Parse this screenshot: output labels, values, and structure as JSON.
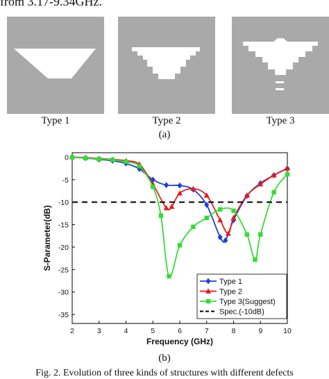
{
  "top_text": "from 3.17-9.34GHz.",
  "structures": [
    {
      "label": "Type 1"
    },
    {
      "label": "Type 2"
    },
    {
      "label": "Type 3"
    }
  ],
  "subfig_a": "(a)",
  "subfig_b": "(b)",
  "caption": "Fig. 2. Evolution of three kinds of structures with different defects",
  "colors": {
    "panel": "#a9a9a9",
    "slot": "#ffffff"
  },
  "chart_data": {
    "type": "line",
    "xlabel": "Frequency (GHz)",
    "ylabel": "S-Parameter(dB)",
    "xlim": [
      2,
      10
    ],
    "ylim": [
      -37,
      1
    ],
    "xticks": [
      2,
      3,
      4,
      5,
      6,
      7,
      8,
      9,
      10
    ],
    "yticks": [
      0,
      -5,
      -10,
      -15,
      -20,
      -25,
      -30,
      -35
    ],
    "legend_position": "bottom-right",
    "series": [
      {
        "name": "Type 1",
        "color": "#1f3fd6",
        "marker": "diamond",
        "x": [
          2,
          2.5,
          3,
          3.5,
          4,
          4.5,
          5,
          5.5,
          6,
          6.5,
          7,
          7.5,
          7.7,
          8,
          8.5,
          9,
          9.5,
          10
        ],
        "y": [
          0,
          -0.2,
          -0.5,
          -0.8,
          -1.4,
          -2.6,
          -5.0,
          -6.2,
          -6.3,
          -7.2,
          -10.6,
          -17.8,
          -18.5,
          -14.0,
          -8.6,
          -5.8,
          -4.0,
          -2.5
        ]
      },
      {
        "name": "Type 2",
        "color": "#e41a1c",
        "marker": "triangle",
        "x": [
          2,
          2.5,
          3,
          3.5,
          4,
          4.5,
          5,
          5.5,
          5.7,
          6,
          6.5,
          7,
          7.5,
          7.8,
          8,
          8.5,
          9,
          9.5,
          10
        ],
        "y": [
          0,
          -0.1,
          -0.3,
          -0.5,
          -0.8,
          -1.6,
          -6.0,
          -11.3,
          -11.0,
          -8.0,
          -7.0,
          -8.5,
          -14.0,
          -17.0,
          -13.5,
          -8.5,
          -6.0,
          -4.0,
          -2.5
        ]
      },
      {
        "name": "Type 3(Suggest)",
        "color": "#33dd33",
        "marker": "square",
        "x": [
          2,
          2.5,
          3,
          3.5,
          4,
          4.5,
          5,
          5.3,
          5.6,
          6,
          6.5,
          7,
          7.5,
          8,
          8.5,
          8.8,
          9,
          9.5,
          10
        ],
        "y": [
          0,
          -0.2,
          -0.4,
          -0.6,
          -1.0,
          -2.0,
          -6.6,
          -13.0,
          -26.5,
          -19.6,
          -15.5,
          -13.5,
          -11.6,
          -11.9,
          -17.2,
          -22.8,
          -17.2,
          -7.8,
          -3.8
        ]
      },
      {
        "name": "Spec.(-10dB)",
        "color": "#000000",
        "style": "dashed",
        "x": [
          2,
          10
        ],
        "y": [
          -10,
          -10
        ]
      }
    ]
  }
}
